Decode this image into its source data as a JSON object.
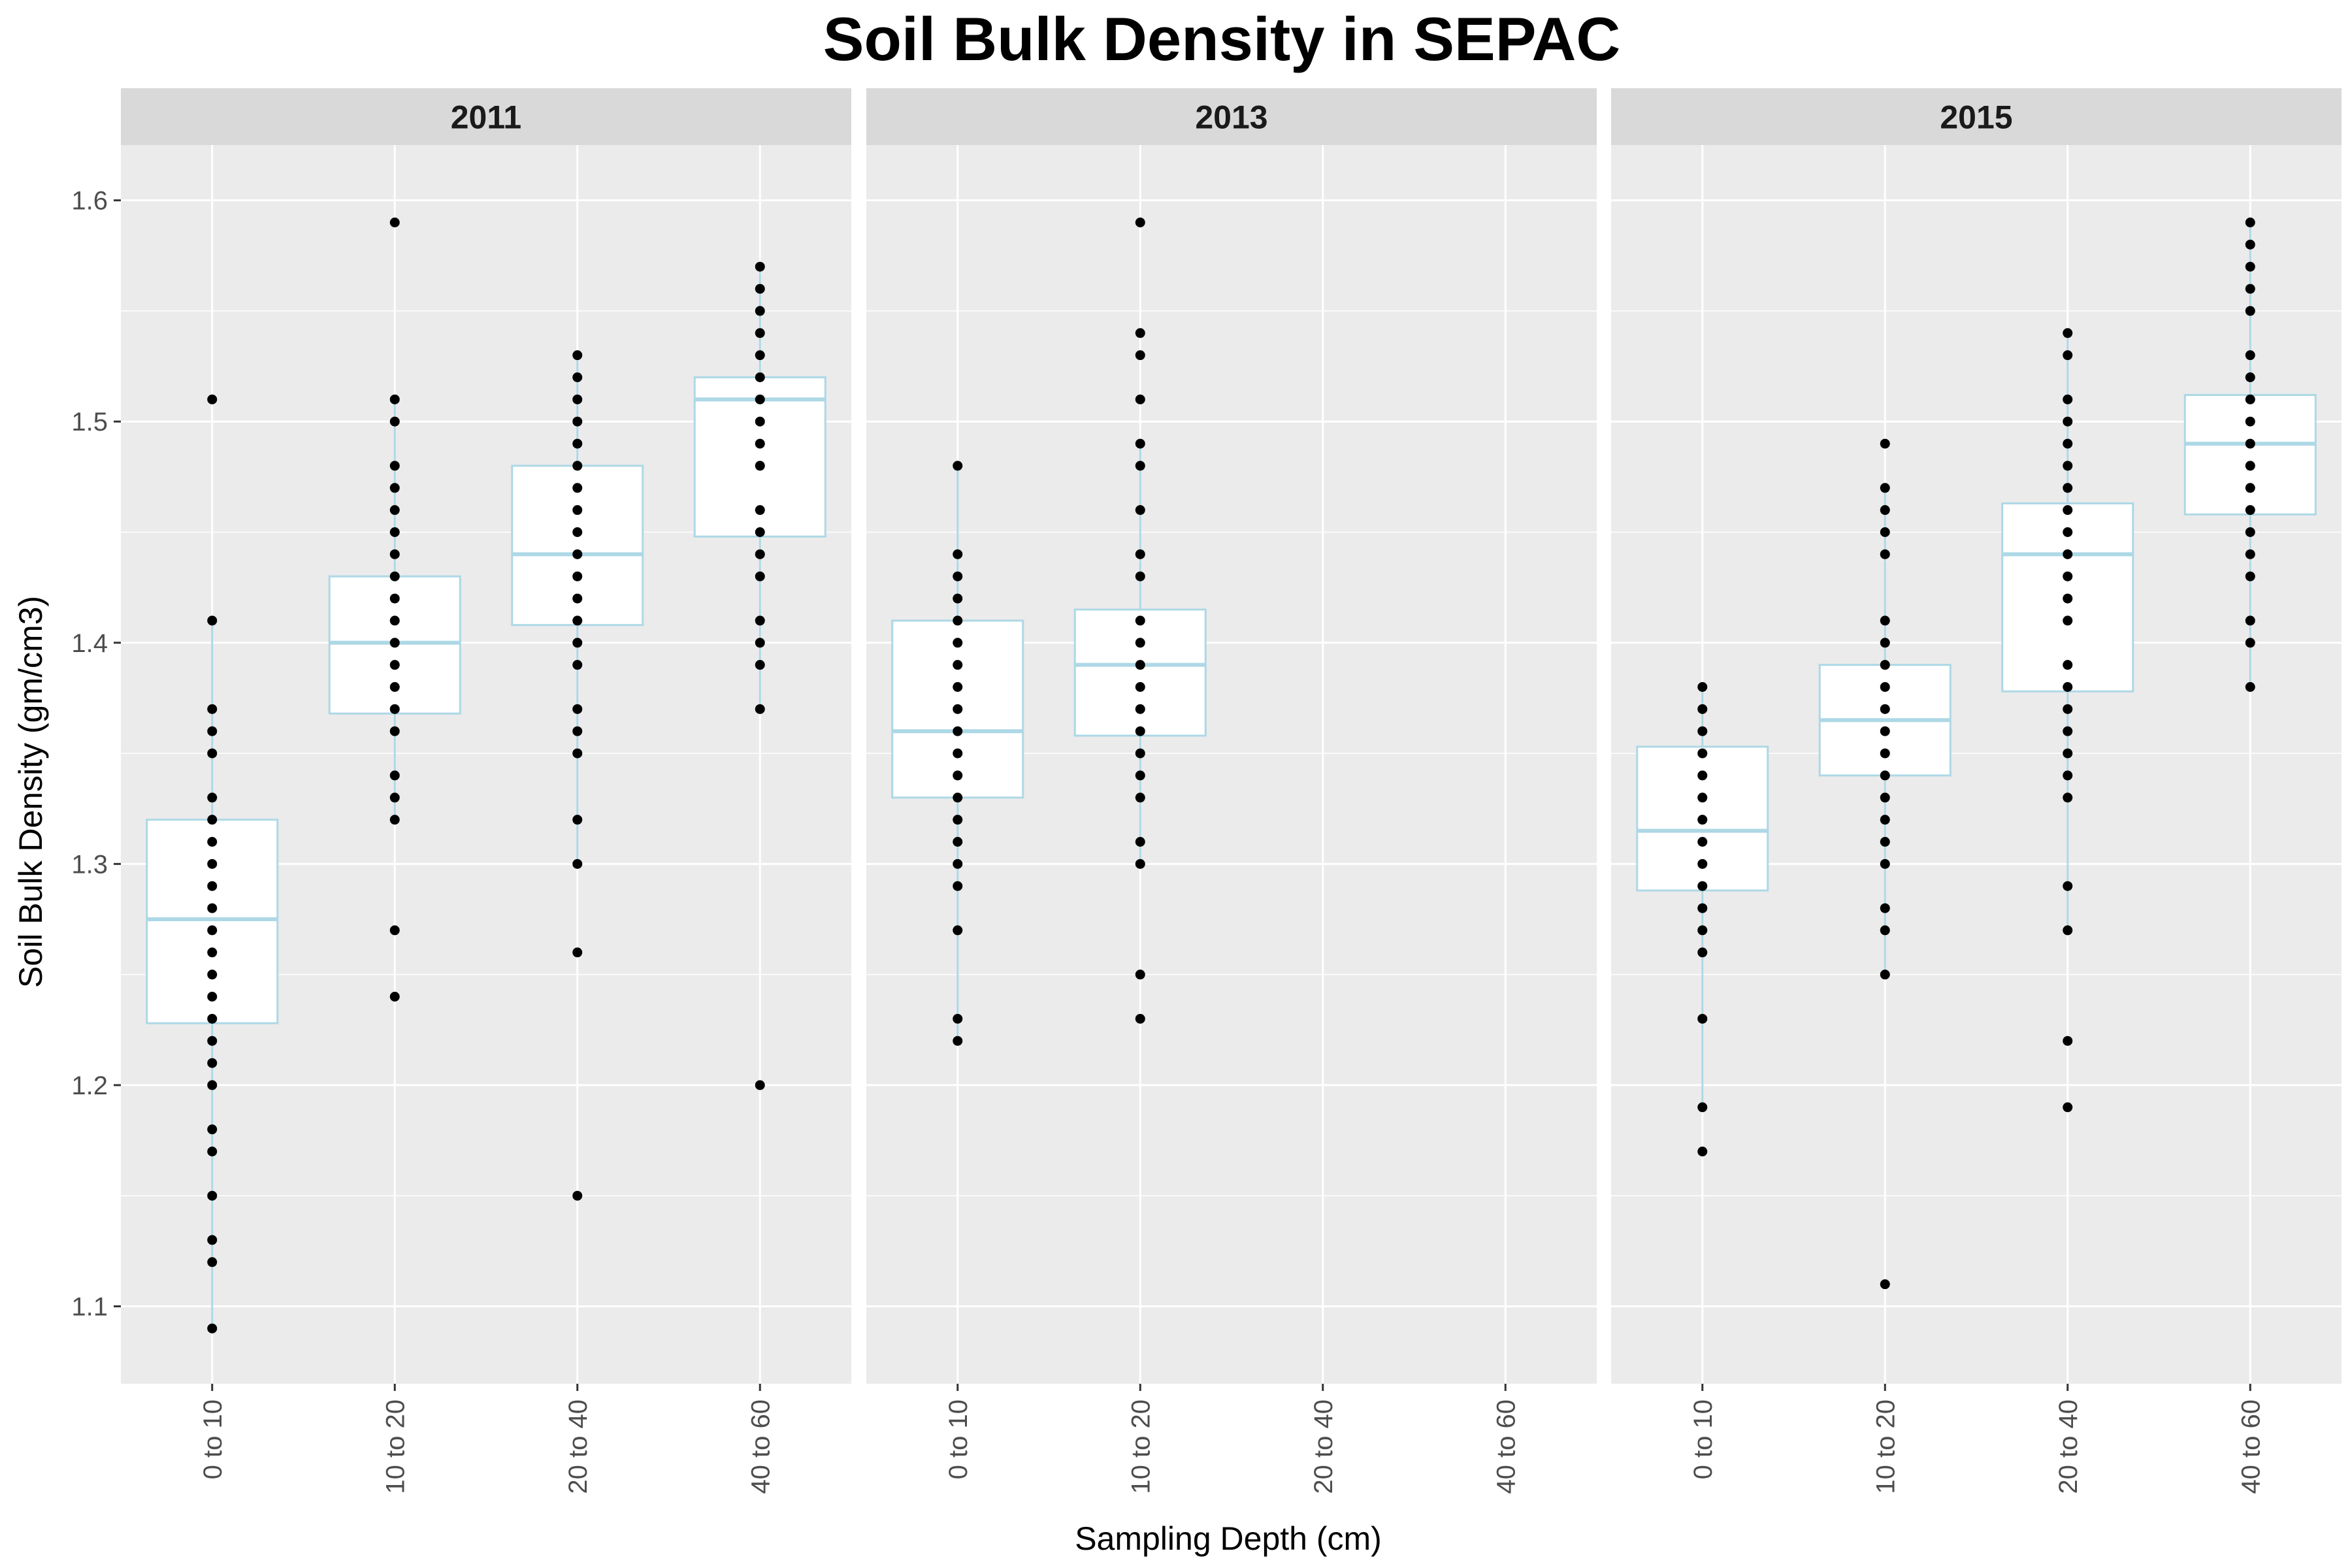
{
  "chart_data": {
    "type": "boxplot",
    "title": "Soil Bulk Density in SEPAC",
    "xlabel": "Sampling Depth (cm)",
    "ylabel": "Soil Bulk Density (gm/cm3)",
    "categories": [
      "0 to 10",
      "10 to 20",
      "20 to 40",
      "40 to 60"
    ],
    "ylim": [
      1.065,
      1.625
    ],
    "yticks": [
      1.1,
      1.2,
      1.3,
      1.4,
      1.5,
      1.6
    ],
    "grid": true,
    "box_color": "#ADD8E6",
    "point_color": "#000000",
    "panels": [
      {
        "facet": "2011",
        "boxes": [
          {
            "category": "0 to 10",
            "whisker_low": 1.09,
            "q1": 1.228,
            "median": 1.275,
            "q3": 1.32,
            "whisker_high": 1.41,
            "points": [
              1.09,
              1.12,
              1.13,
              1.15,
              1.17,
              1.18,
              1.2,
              1.21,
              1.22,
              1.23,
              1.24,
              1.25,
              1.26,
              1.27,
              1.28,
              1.29,
              1.3,
              1.31,
              1.32,
              1.33,
              1.35,
              1.36,
              1.37,
              1.41,
              1.51
            ]
          },
          {
            "category": "10 to 20",
            "whisker_low": 1.32,
            "q1": 1.368,
            "median": 1.4,
            "q3": 1.43,
            "whisker_high": 1.51,
            "points": [
              1.24,
              1.27,
              1.32,
              1.33,
              1.34,
              1.36,
              1.37,
              1.38,
              1.39,
              1.4,
              1.41,
              1.42,
              1.43,
              1.44,
              1.45,
              1.46,
              1.47,
              1.48,
              1.5,
              1.51,
              1.59
            ]
          },
          {
            "category": "20 to 40",
            "whisker_low": 1.3,
            "q1": 1.408,
            "median": 1.44,
            "q3": 1.48,
            "whisker_high": 1.53,
            "points": [
              1.15,
              1.26,
              1.3,
              1.32,
              1.35,
              1.36,
              1.37,
              1.39,
              1.4,
              1.41,
              1.42,
              1.43,
              1.44,
              1.45,
              1.46,
              1.47,
              1.48,
              1.49,
              1.5,
              1.51,
              1.52,
              1.53
            ]
          },
          {
            "category": "40 to 60",
            "whisker_low": 1.37,
            "q1": 1.448,
            "median": 1.51,
            "q3": 1.52,
            "whisker_high": 1.57,
            "points": [
              1.2,
              1.37,
              1.39,
              1.4,
              1.41,
              1.43,
              1.44,
              1.45,
              1.46,
              1.48,
              1.49,
              1.5,
              1.51,
              1.52,
              1.53,
              1.54,
              1.55,
              1.56,
              1.57
            ]
          }
        ]
      },
      {
        "facet": "2013",
        "boxes": [
          {
            "category": "0 to 10",
            "whisker_low": 1.22,
            "q1": 1.33,
            "median": 1.36,
            "q3": 1.41,
            "whisker_high": 1.48,
            "points": [
              1.22,
              1.23,
              1.27,
              1.29,
              1.3,
              1.31,
              1.32,
              1.33,
              1.34,
              1.35,
              1.36,
              1.37,
              1.38,
              1.39,
              1.4,
              1.41,
              1.42,
              1.43,
              1.44,
              1.48
            ]
          },
          {
            "category": "10 to 20",
            "whisker_low": 1.3,
            "q1": 1.358,
            "median": 1.39,
            "q3": 1.415,
            "whisker_high": 1.49,
            "points": [
              1.23,
              1.25,
              1.3,
              1.31,
              1.33,
              1.34,
              1.35,
              1.36,
              1.37,
              1.38,
              1.39,
              1.4,
              1.41,
              1.43,
              1.44,
              1.46,
              1.48,
              1.49,
              1.51,
              1.53,
              1.54,
              1.59
            ]
          }
        ]
      },
      {
        "facet": "2015",
        "boxes": [
          {
            "category": "0 to 10",
            "whisker_low": 1.19,
            "q1": 1.288,
            "median": 1.315,
            "q3": 1.353,
            "whisker_high": 1.38,
            "points": [
              1.17,
              1.19,
              1.23,
              1.26,
              1.27,
              1.28,
              1.29,
              1.3,
              1.31,
              1.32,
              1.33,
              1.34,
              1.35,
              1.36,
              1.37,
              1.38
            ]
          },
          {
            "category": "10 to 20",
            "whisker_low": 1.25,
            "q1": 1.34,
            "median": 1.365,
            "q3": 1.39,
            "whisker_high": 1.47,
            "points": [
              1.11,
              1.25,
              1.27,
              1.28,
              1.3,
              1.31,
              1.32,
              1.33,
              1.34,
              1.35,
              1.36,
              1.37,
              1.38,
              1.39,
              1.4,
              1.41,
              1.44,
              1.45,
              1.46,
              1.47,
              1.49
            ]
          },
          {
            "category": "20 to 40",
            "whisker_low": 1.27,
            "q1": 1.378,
            "median": 1.44,
            "q3": 1.463,
            "whisker_high": 1.54,
            "points": [
              1.19,
              1.22,
              1.27,
              1.29,
              1.33,
              1.34,
              1.35,
              1.36,
              1.37,
              1.38,
              1.39,
              1.41,
              1.42,
              1.43,
              1.44,
              1.45,
              1.46,
              1.47,
              1.48,
              1.49,
              1.5,
              1.51,
              1.53,
              1.54
            ]
          },
          {
            "category": "40 to 60",
            "whisker_low": 1.38,
            "q1": 1.458,
            "median": 1.49,
            "q3": 1.512,
            "whisker_high": 1.59,
            "points": [
              1.38,
              1.4,
              1.41,
              1.43,
              1.44,
              1.45,
              1.46,
              1.47,
              1.48,
              1.49,
              1.5,
              1.51,
              1.52,
              1.53,
              1.55,
              1.56,
              1.57,
              1.58,
              1.59
            ]
          }
        ]
      }
    ]
  }
}
